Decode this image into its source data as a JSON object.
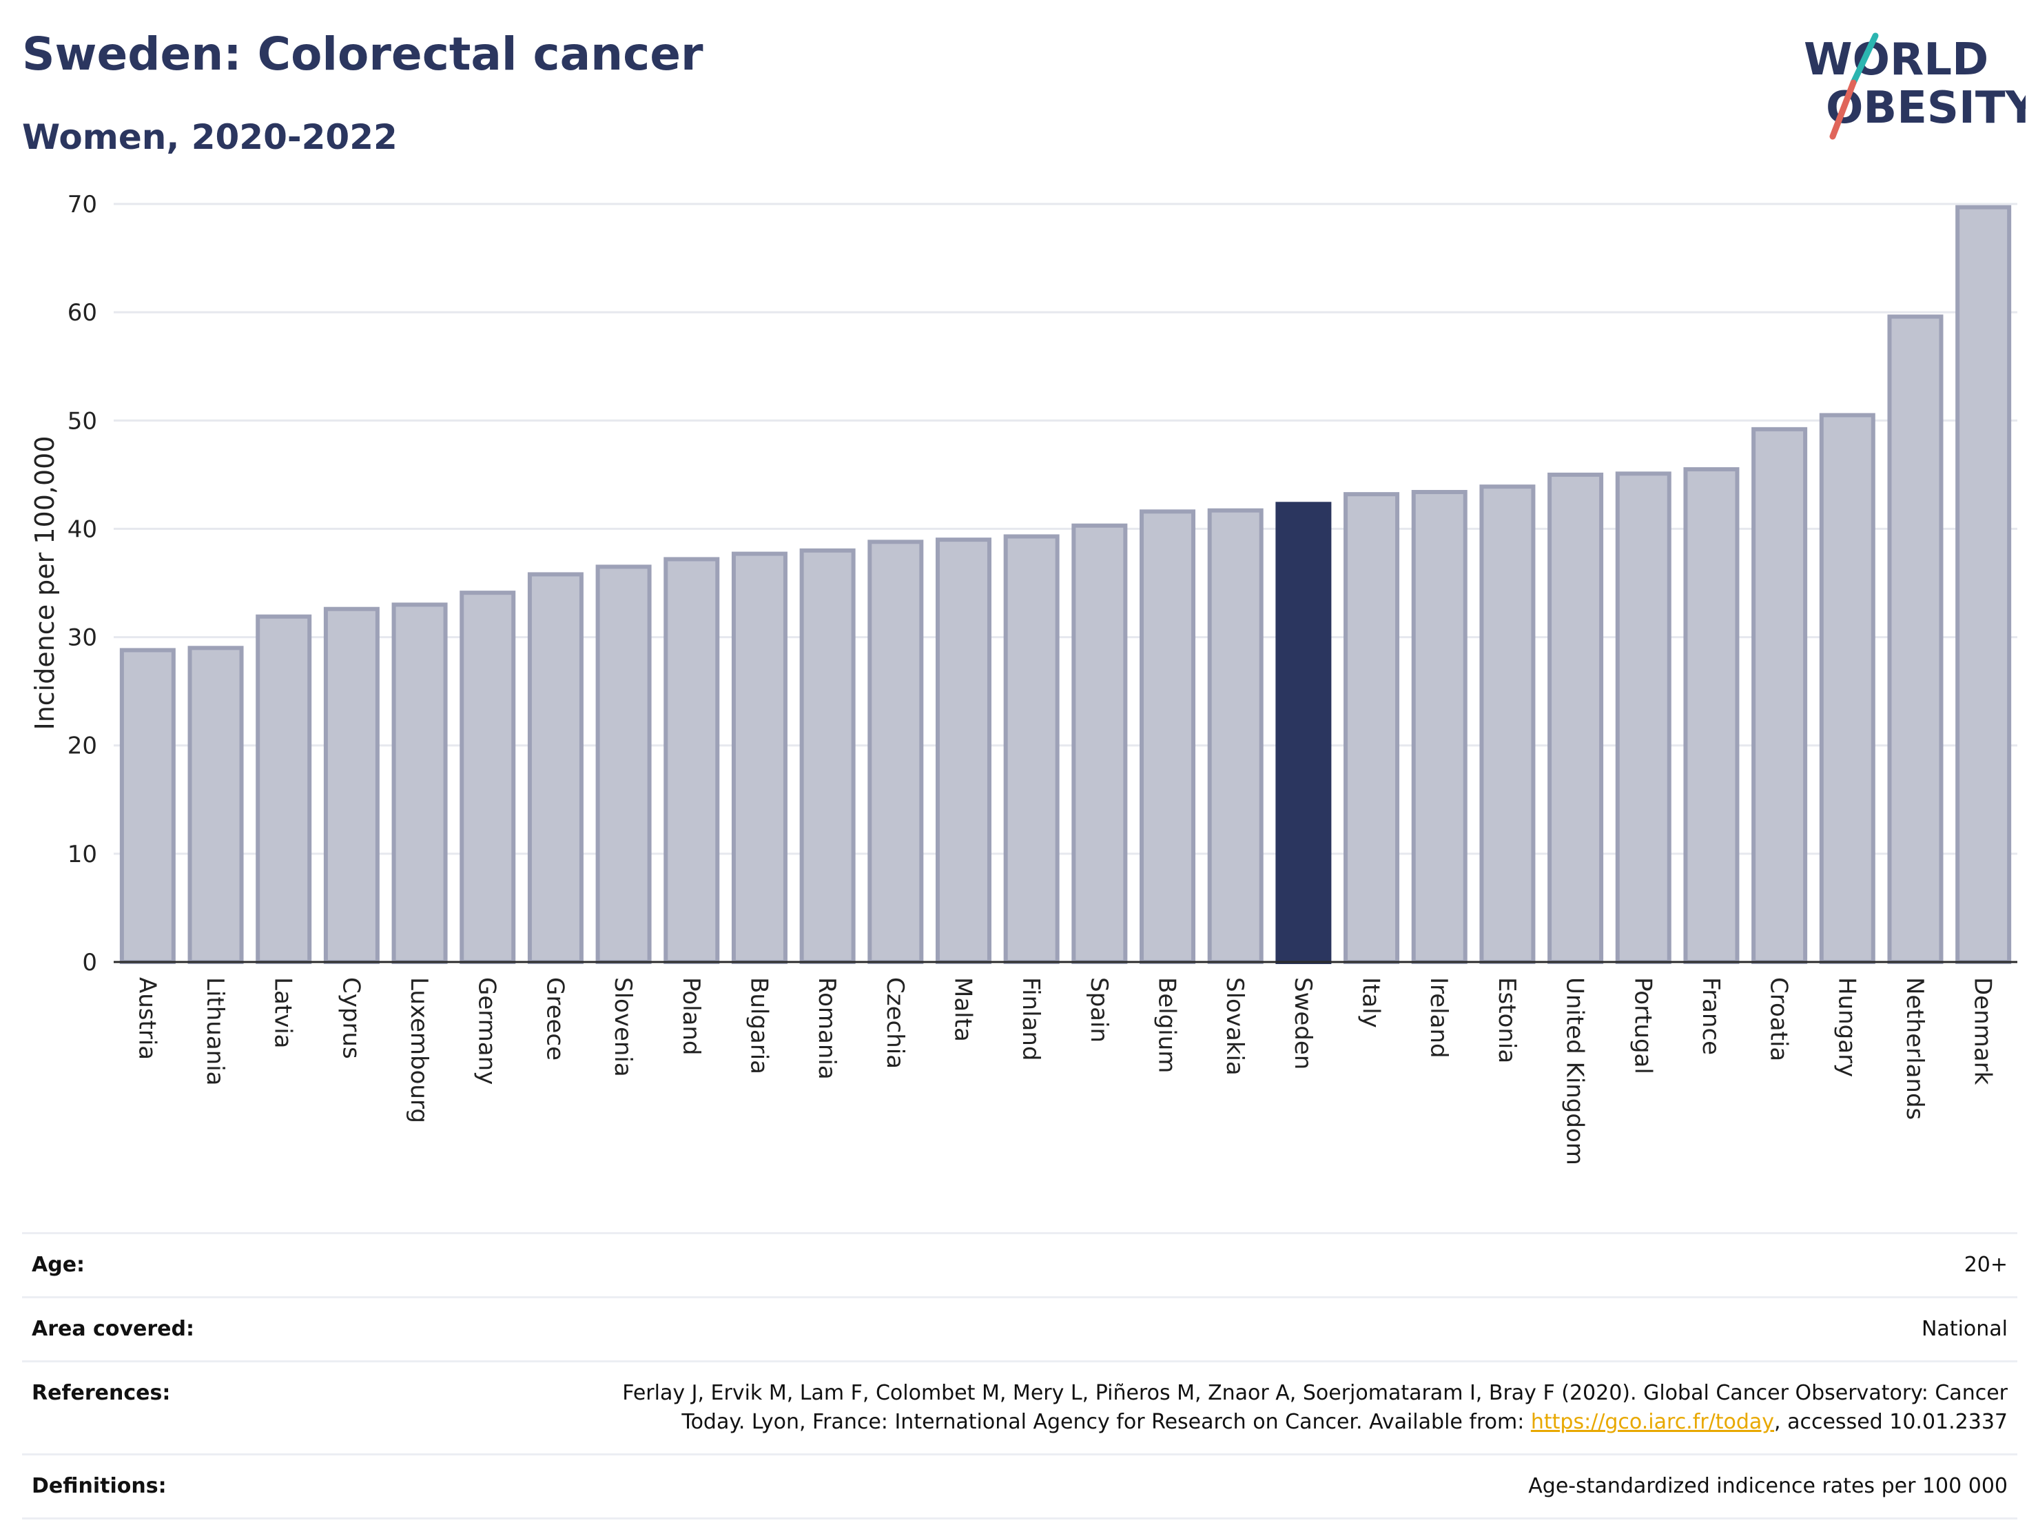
{
  "header": {
    "title": "Sweden: Colorectal cancer",
    "subtitle": "Women, 2020-2022"
  },
  "logo": {
    "line1": "WORLD",
    "line2": "OBESITY",
    "accent_colors": [
      "#2bb5b0",
      "#e0655a"
    ]
  },
  "colors": {
    "highlight": "#2b365f",
    "bar_fill": "#c0c3d0",
    "bar_stroke": "#9da1b7",
    "gridline": "#e6e8ee",
    "title": "#2b365f",
    "link": "#e8a800"
  },
  "chart_data": {
    "type": "bar",
    "title": "Sweden: Colorectal cancer",
    "subtitle": "Women, 2020-2022",
    "xlabel": "",
    "ylabel": "Incidence per 100,000",
    "ylim": [
      0,
      70
    ],
    "yticks": [
      0,
      10,
      20,
      30,
      40,
      50,
      60,
      70
    ],
    "grid": true,
    "highlight": "Sweden",
    "categories": [
      "Austria",
      "Lithuania",
      "Latvia",
      "Cyprus",
      "Luxembourg",
      "Germany",
      "Greece",
      "Slovenia",
      "Poland",
      "Bulgaria",
      "Romania",
      "Czechia",
      "Malta",
      "Finland",
      "Spain",
      "Belgium",
      "Slovakia",
      "Sweden",
      "Italy",
      "Ireland",
      "Estonia",
      "United Kingdom",
      "Portugal",
      "France",
      "Croatia",
      "Hungary",
      "Netherlands",
      "Denmark"
    ],
    "values": [
      28.8,
      29.0,
      31.9,
      32.6,
      33.0,
      34.1,
      35.8,
      36.5,
      37.2,
      37.7,
      38.0,
      38.8,
      39.0,
      39.3,
      40.3,
      41.6,
      41.7,
      42.3,
      43.2,
      43.4,
      43.9,
      45.0,
      45.1,
      45.5,
      49.2,
      50.5,
      59.6,
      69.7
    ]
  },
  "info": {
    "age": {
      "label": "Age:",
      "value": "20+"
    },
    "area": {
      "label": "Area covered:",
      "value": "National"
    },
    "references": {
      "label": "References:",
      "text_before": "Ferlay J, Ervik M, Lam F, Colombet M, Mery L, Piñeros M, Znaor A, Soerjomataram I, Bray F (2020). Global Cancer Observatory: Cancer Today. Lyon, France: International Agency for Research on Cancer. Available from: ",
      "link": "https://gco.iarc.fr/today",
      "text_after": ", accessed 10.01.2337"
    },
    "definitions": {
      "label": "Definitions:",
      "value": "Age-standardized indicence rates per 100 000"
    }
  }
}
